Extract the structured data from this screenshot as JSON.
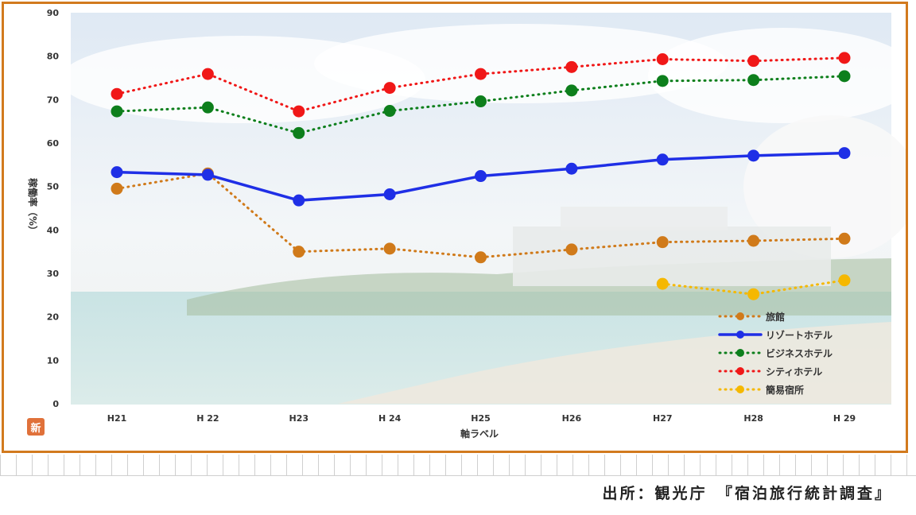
{
  "chart_data": {
    "type": "line",
    "categories": [
      "H21",
      "H 22",
      "H23",
      "H 24",
      "H25",
      "H26",
      "H27",
      "H28",
      "H 29"
    ],
    "xlabel": "軸ラベル",
    "ylabel": "稼働率（%）",
    "ylim": [
      0,
      90
    ],
    "yticks": [
      0,
      10,
      20,
      30,
      40,
      50,
      60,
      70,
      80,
      90
    ],
    "grid": false,
    "legend_position": "bottom-right",
    "series": [
      {
        "name": "旅館",
        "color": "#d07a1a",
        "style": "dotted",
        "values": [
          49.5,
          53,
          35,
          35.7,
          33.7,
          35.5,
          37.2,
          37.5,
          38
        ]
      },
      {
        "name": "リゾートホテル",
        "color": "#1f2fe6",
        "style": "solid",
        "values": [
          53.3,
          52.7,
          46.8,
          48.2,
          52.4,
          54.1,
          56.2,
          57.1,
          57.7
        ]
      },
      {
        "name": "ビジネスホテル",
        "color": "#0d7f1c",
        "style": "dotted",
        "values": [
          67.3,
          68.2,
          62.3,
          67.4,
          69.6,
          72.1,
          74.3,
          74.5,
          75.4
        ]
      },
      {
        "name": "シティホテル",
        "color": "#f01818",
        "style": "dotted",
        "values": [
          71.3,
          75.9,
          67.3,
          72.7,
          75.9,
          77.5,
          79.3,
          78.9,
          79.6
        ]
      },
      {
        "name": "簡易宿所",
        "color": "#f5b800",
        "style": "dotted",
        "values": [
          null,
          null,
          null,
          null,
          null,
          null,
          27.6,
          25.2,
          28.4
        ]
      }
    ]
  },
  "badge_text": "新",
  "source_note": "出所：観光庁　『宿泊旅行統計調査』"
}
